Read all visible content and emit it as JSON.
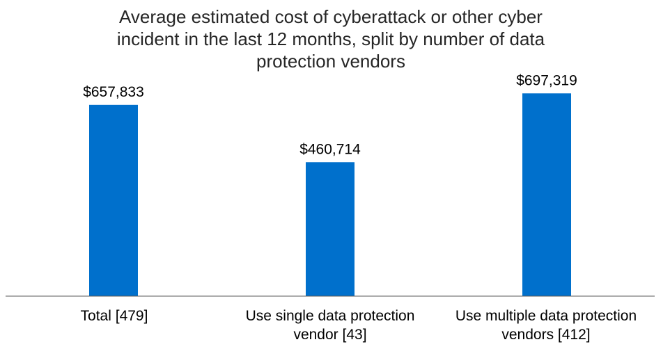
{
  "chart_data": {
    "type": "bar",
    "title_lines": [
      "Average estimated cost of cyberattack or other cyber",
      "incident in the last 12 months, split by number of data",
      "protection vendors"
    ],
    "categories": [
      [
        "Total [479]"
      ],
      [
        "Use single data protection",
        "vendor [43]"
      ],
      [
        "Use multiple data protection",
        "vendors [412]"
      ]
    ],
    "values": [
      657833,
      460714,
      697319
    ],
    "data_labels": [
      "$657,833",
      "$460,714",
      "$697,319"
    ],
    "ylim": [
      0,
      765000
    ],
    "bar_color": "#0070CC",
    "axis_color": "#595959",
    "grid": false,
    "legend": false
  }
}
